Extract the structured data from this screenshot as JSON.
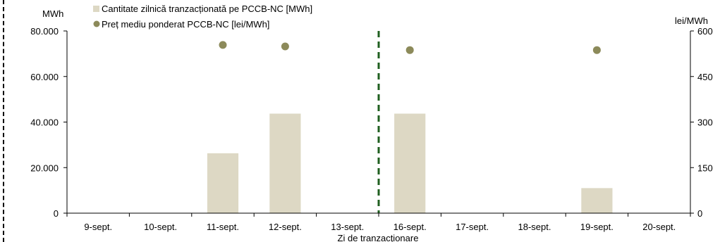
{
  "chart_data": {
    "type": "bar",
    "categories": [
      "9-sept.",
      "10-sept.",
      "11-sept.",
      "12-sept.",
      "13-sept.",
      "16-sept.",
      "17-sept.",
      "18-sept.",
      "19-sept.",
      "20-sept."
    ],
    "series": [
      {
        "name": "Cantitate zilnică tranzacționată pe PCCB-NC [MWh]",
        "type": "bar",
        "axis": "left",
        "values": [
          0,
          0,
          26300,
          43700,
          0,
          43700,
          0,
          0,
          11000,
          0
        ]
      },
      {
        "name": "Preț mediu ponderat PCCB-NC [lei/MWh]",
        "type": "scatter",
        "axis": "right",
        "values": [
          null,
          null,
          554,
          549,
          null,
          537,
          null,
          null,
          537,
          null
        ]
      }
    ],
    "xlabel": "Zi de tranzacționare",
    "ylabel_left": "MWh",
    "ylabel_right": "lei/MWh",
    "ylim_left": [
      0,
      80000
    ],
    "ylim_right": [
      0,
      600
    ],
    "yticks_left": [
      "0",
      "20.000",
      "40.000",
      "60.000",
      "80.000"
    ],
    "yticks_right": [
      "0",
      "150",
      "300",
      "450",
      "600"
    ],
    "divider_after_category": "13-sept.",
    "grid": false,
    "legend_position": "top-left",
    "colors": {
      "bar": "#ddd8c4",
      "marker": "#8c8a5a",
      "divider": "#1f5f1f",
      "axis": "#000000"
    }
  }
}
